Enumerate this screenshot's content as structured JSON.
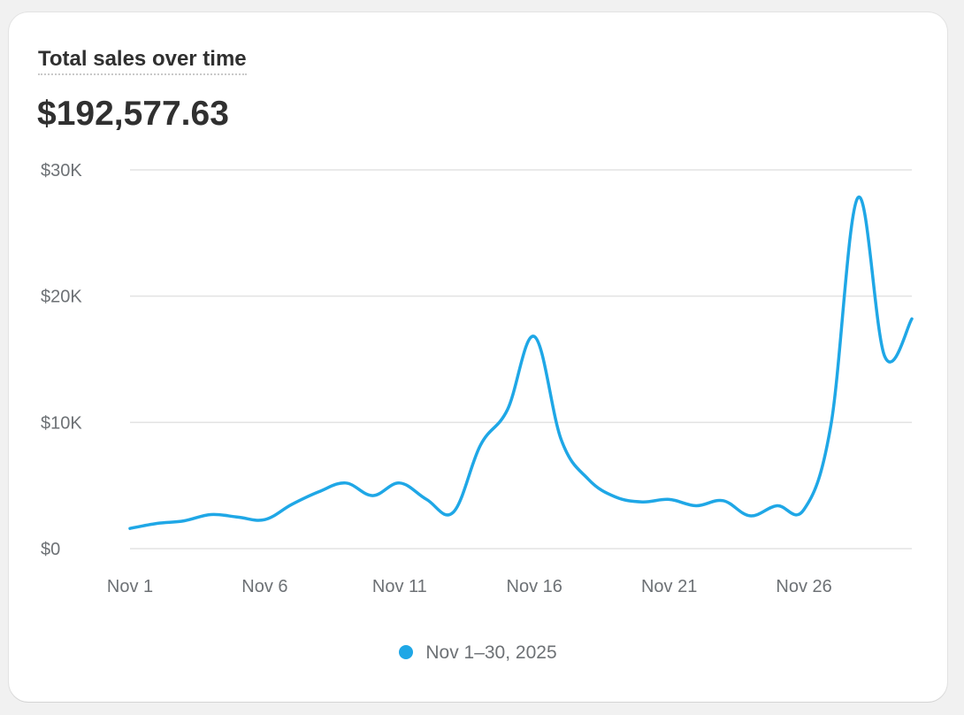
{
  "card": {
    "title": "Total sales over time",
    "total": "$192,577.63"
  },
  "chart_data": {
    "type": "line",
    "title": "Total sales over time",
    "xlabel": "",
    "ylabel": "",
    "x": [
      "Nov 1",
      "Nov 2",
      "Nov 3",
      "Nov 4",
      "Nov 5",
      "Nov 6",
      "Nov 7",
      "Nov 8",
      "Nov 9",
      "Nov 10",
      "Nov 11",
      "Nov 12",
      "Nov 13",
      "Nov 14",
      "Nov 15",
      "Nov 16",
      "Nov 17",
      "Nov 18",
      "Nov 19",
      "Nov 20",
      "Nov 21",
      "Nov 22",
      "Nov 23",
      "Nov 24",
      "Nov 25",
      "Nov 26",
      "Nov 27",
      "Nov 28",
      "Nov 29",
      "Nov 30"
    ],
    "x_tick_labels": [
      "Nov 1",
      "Nov 6",
      "Nov 11",
      "Nov 16",
      "Nov 21",
      "Nov 26"
    ],
    "y_tick_labels": [
      "$0",
      "$10K",
      "$20K",
      "$30K"
    ],
    "y_ticks": [
      0,
      10000,
      20000,
      30000
    ],
    "ylim": [
      0,
      30000
    ],
    "grid": true,
    "legend_position": "bottom-center",
    "series": [
      {
        "name": "Nov 1–30, 2025",
        "color": "#1fa7e6",
        "values": [
          1600,
          2000,
          2200,
          2700,
          2500,
          2300,
          3500,
          4500,
          5200,
          4200,
          5200,
          3900,
          2900,
          8200,
          11000,
          16800,
          8600,
          5500,
          4100,
          3700,
          3900,
          3400,
          3800,
          2600,
          3400,
          3100,
          9800,
          27800,
          15200,
          18200
        ]
      }
    ]
  }
}
